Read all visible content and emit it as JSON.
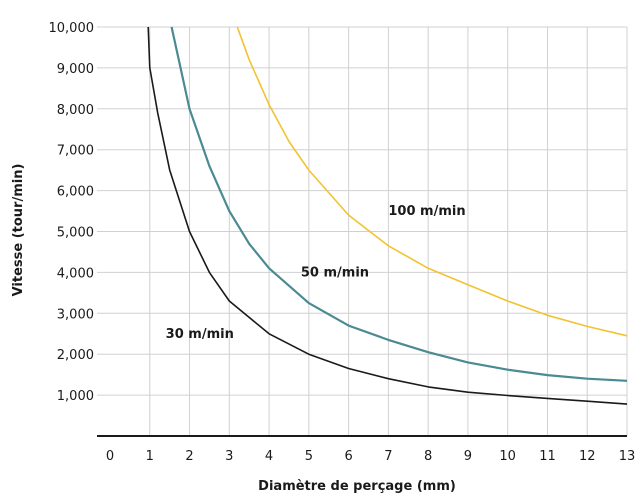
{
  "chart_data": {
    "type": "line",
    "xlabel": "Diamètre de perçage (mm)",
    "ylabel": "Vitesse (tour/min)",
    "xlim": [
      0,
      13
    ],
    "ylim": [
      0,
      10000
    ],
    "x_ticks": [
      "0",
      "1",
      "2",
      "3",
      "4",
      "5",
      "6",
      "7",
      "8",
      "9",
      "10",
      "11",
      "12",
      "13"
    ],
    "y_ticks": [
      "1,000",
      "2,000",
      "3,000",
      "4,000",
      "5,000",
      "6,000",
      "7,000",
      "8,000",
      "9,000",
      "10,000"
    ],
    "y_tick_values": [
      1000,
      2000,
      3000,
      4000,
      5000,
      6000,
      7000,
      8000,
      9000,
      10000
    ],
    "grid": true,
    "series": [
      {
        "name": "30 m/min",
        "color": "#1a1a1a",
        "x": [
          0.96,
          1.0,
          1.2,
          1.5,
          2.0,
          2.5,
          3.0,
          4.0,
          5.0,
          6.0,
          7.0,
          8.0,
          9.0,
          10.0,
          11.0,
          12.0,
          13.0
        ],
        "y": [
          10000,
          9000,
          7900,
          6500,
          5000,
          4000,
          3300,
          2500,
          2000,
          1650,
          1400,
          1200,
          1070,
          990,
          920,
          850,
          780
        ]
      },
      {
        "name": "50 m/min",
        "color": "#4a8a92",
        "x": [
          1.55,
          2.0,
          2.5,
          3.0,
          3.5,
          4.0,
          5.0,
          6.0,
          7.0,
          8.0,
          9.0,
          10.0,
          11.0,
          12.0,
          13.0
        ],
        "y": [
          10000,
          8000,
          6600,
          5500,
          4700,
          4100,
          3250,
          2700,
          2350,
          2050,
          1800,
          1620,
          1490,
          1400,
          1350
        ]
      },
      {
        "name": "100 m/min",
        "color": "#f2c230",
        "x": [
          3.2,
          3.5,
          4.0,
          4.5,
          5.0,
          6.0,
          7.0,
          8.0,
          9.0,
          10.0,
          11.0,
          12.0,
          13.0
        ],
        "y": [
          10000,
          9200,
          8100,
          7200,
          6500,
          5400,
          4650,
          4100,
          3700,
          3300,
          2950,
          2680,
          2450
        ]
      }
    ],
    "labels": [
      {
        "text": "100 m/min",
        "x": 7.0,
        "y": 5400
      },
      {
        "text": "50 m/min",
        "x": 4.8,
        "y": 3900
      },
      {
        "text": "30 m/min",
        "x": 1.4,
        "y": 2400
      }
    ]
  }
}
